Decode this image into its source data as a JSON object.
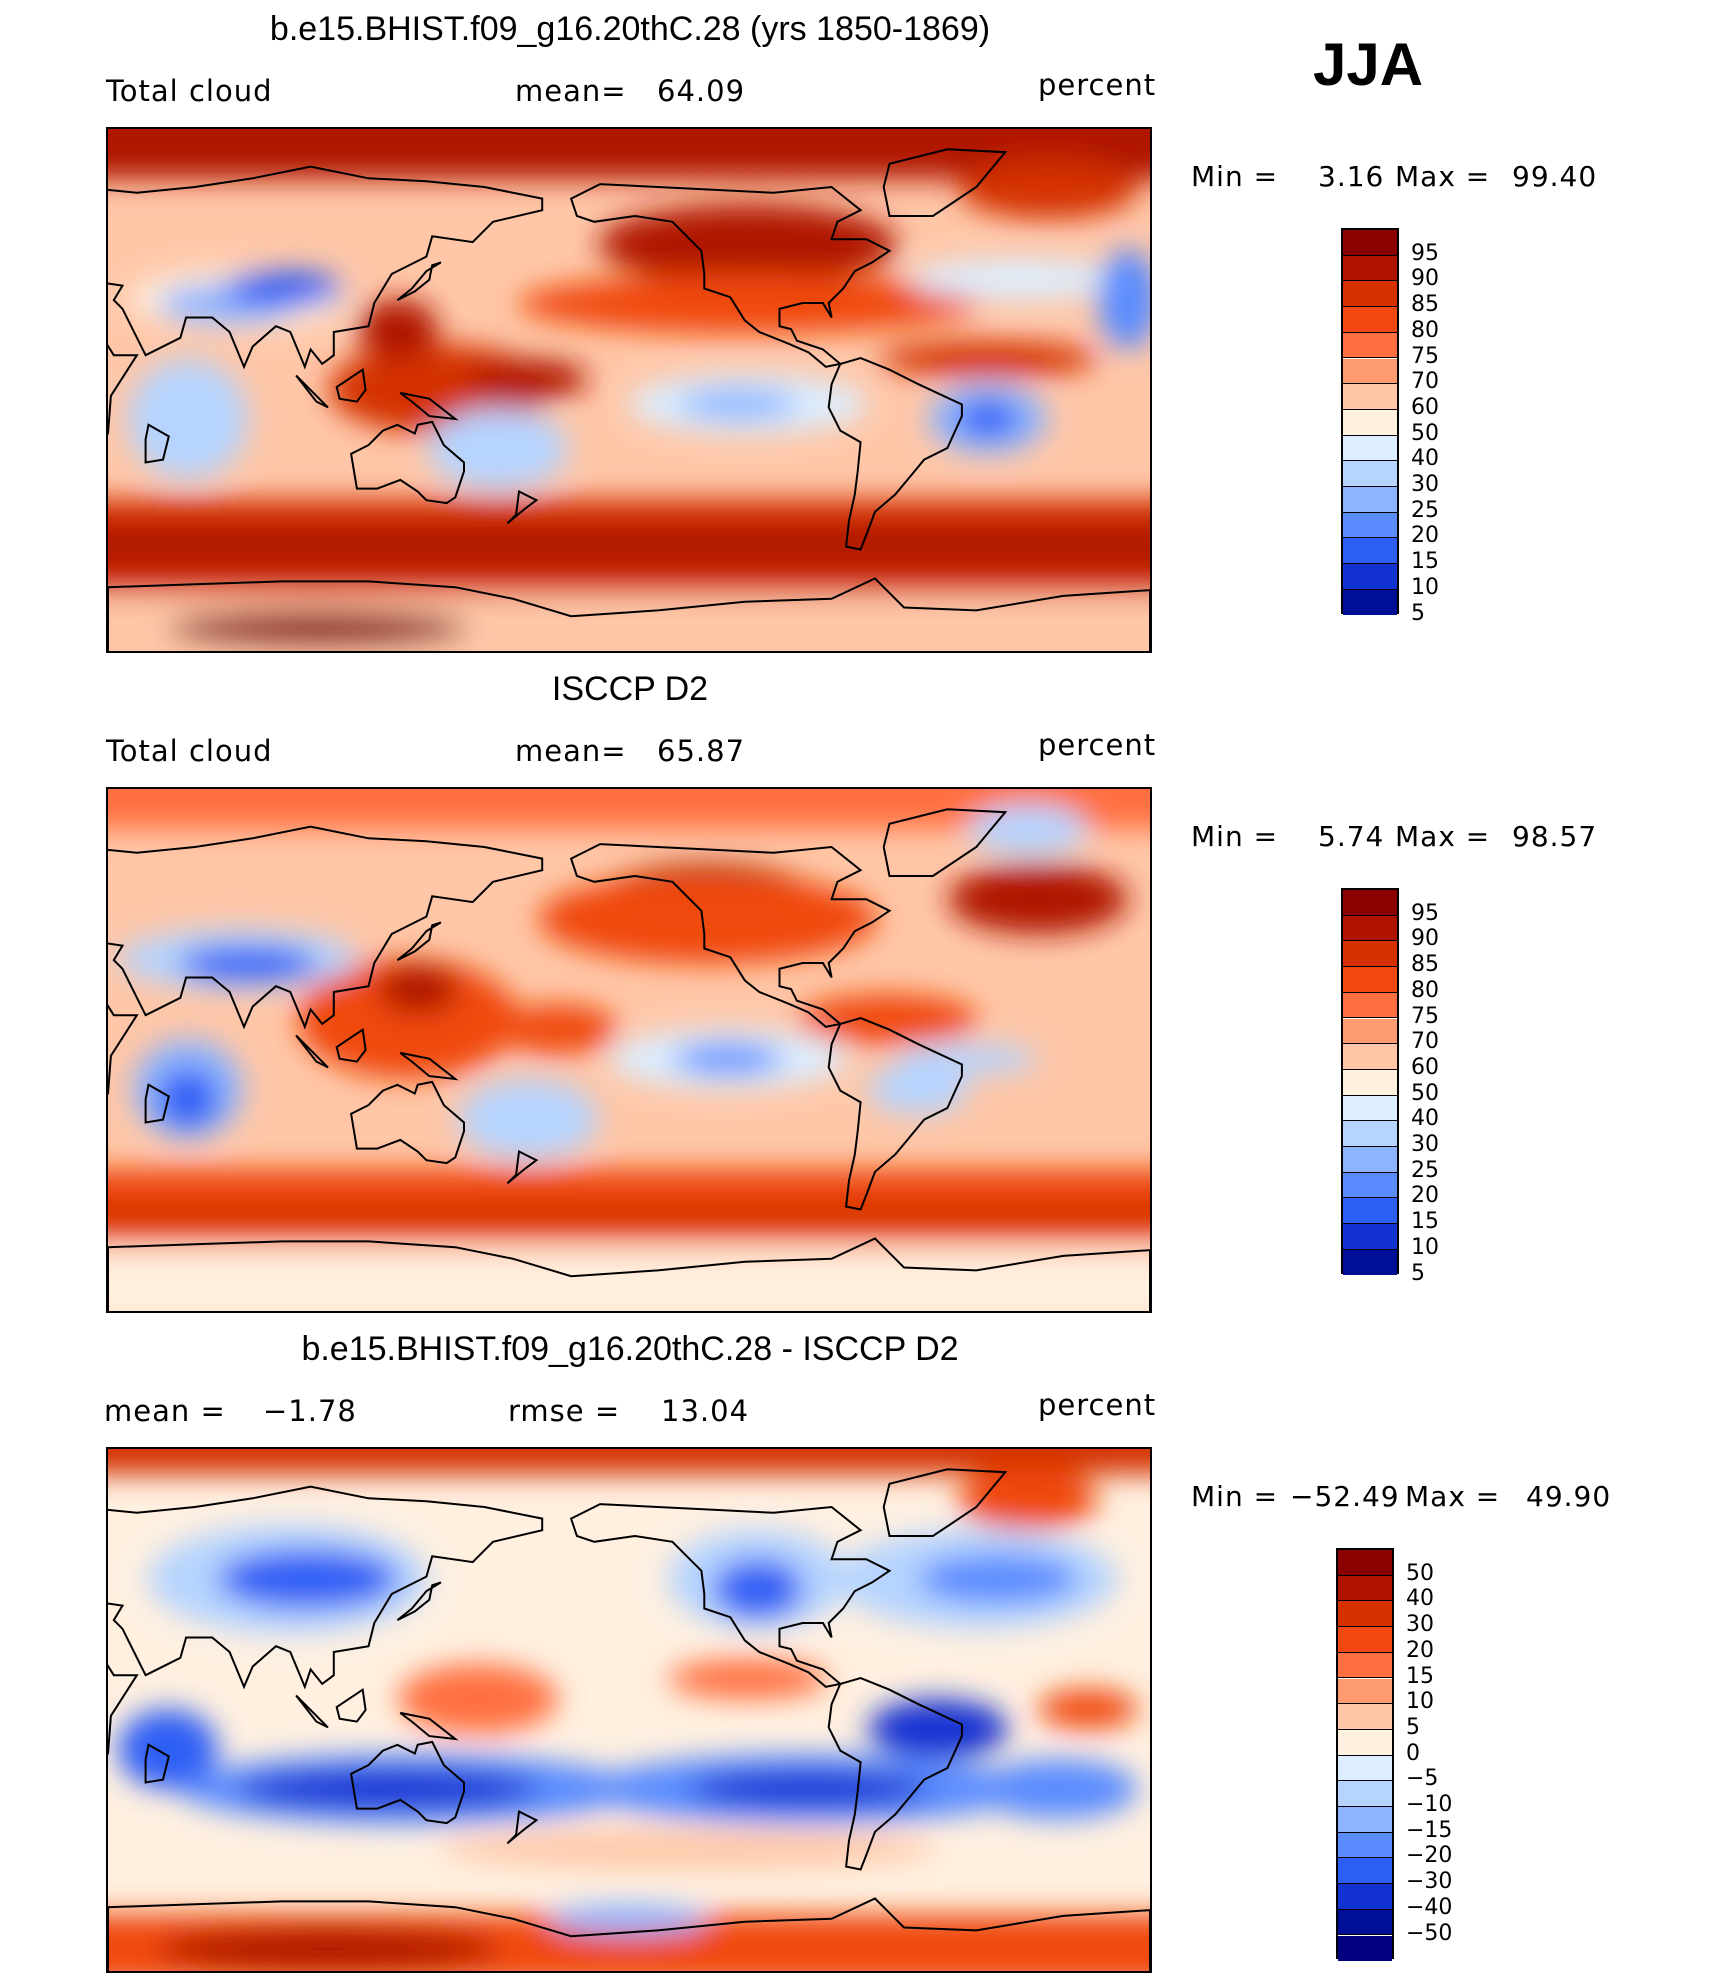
{
  "season": "JJA",
  "panels": [
    {
      "title": "b.e15.BHIST.f09_g16.20thC.28 (yrs 1850-1869)",
      "left": "Total cloud",
      "mid_label": "mean=",
      "mid_value": "64.09",
      "units": "percent",
      "min_label": "Min =",
      "min_value": "3.16",
      "max_label": "Max =",
      "max_value": "99.40",
      "colorbar_labels": [
        "95",
        "90",
        "85",
        "80",
        "75",
        "70",
        "60",
        "50",
        "40",
        "30",
        "25",
        "20",
        "15",
        "10",
        "5"
      ],
      "colors": [
        "#8b0000",
        "#b01400",
        "#d43000",
        "#f04810",
        "#ff7040",
        "#ff9b70",
        "#ffc7a8",
        "#fff0e0",
        "#dceeff",
        "#b6d4ff",
        "#8cb4ff",
        "#5a8cff",
        "#2d5ef5",
        "#1232d2",
        "#000f96"
      ]
    },
    {
      "title": "ISCCP D2",
      "left": "Total cloud",
      "mid_label": "mean=",
      "mid_value": "65.87",
      "units": "percent",
      "min_label": "Min =",
      "min_value": "5.74",
      "max_label": "Max =",
      "max_value": "98.57",
      "colorbar_labels": [
        "95",
        "90",
        "85",
        "80",
        "75",
        "70",
        "60",
        "50",
        "40",
        "30",
        "25",
        "20",
        "15",
        "10",
        "5"
      ],
      "colors": [
        "#8b0000",
        "#b01400",
        "#d43000",
        "#f04810",
        "#ff7040",
        "#ff9b70",
        "#ffc7a8",
        "#fff0e0",
        "#dceeff",
        "#b6d4ff",
        "#8cb4ff",
        "#5a8cff",
        "#2d5ef5",
        "#1232d2",
        "#000f96"
      ]
    },
    {
      "title": "b.e15.BHIST.f09_g16.20thC.28 - ISCCP D2",
      "left_label": "mean =",
      "left_value": "−1.78",
      "mid_label": "rmse =",
      "mid_value": "13.04",
      "units": "percent",
      "min_label": "Min =",
      "min_value": "−52.49",
      "max_label": "Max =",
      "max_value": "49.90",
      "colorbar_labels": [
        "50",
        "40",
        "30",
        "20",
        "15",
        "10",
        "5",
        "0",
        "−5",
        "−10",
        "−15",
        "−20",
        "−30",
        "−40",
        "−50"
      ],
      "colors": [
        "#8b0000",
        "#b01400",
        "#d43000",
        "#f04810",
        "#ff7040",
        "#ff9b70",
        "#ffc7a8",
        "#fff0e0",
        "#dceeff",
        "#b6d4ff",
        "#8cb4ff",
        "#5a8cff",
        "#2d5ef5",
        "#1232d2",
        "#000f96",
        "#000080"
      ]
    }
  ]
}
